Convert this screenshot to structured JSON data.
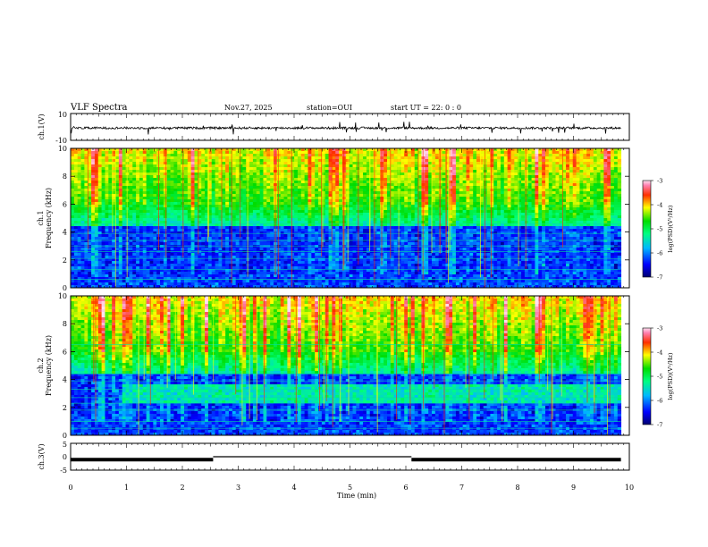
{
  "header": {
    "title": "VLF Spectra",
    "date": "Nov.27, 2025",
    "station": "station=OUI",
    "start": "start  UT =   22: 0  : 0"
  },
  "chart_data": {
    "type": "heatmap",
    "x": {
      "label": "Time  (min)",
      "range": [
        0,
        10
      ],
      "ticks": [
        "0",
        "1",
        "2",
        "3",
        "4",
        "5",
        "6",
        "7",
        "8",
        "9",
        "10"
      ]
    },
    "panels": [
      {
        "id": "waveform_ch1",
        "type": "line",
        "ylabel": "ch.1(V)",
        "ylim": [
          -10,
          10
        ],
        "yticks": [
          "10",
          "-10"
        ]
      },
      {
        "id": "spectrogram_ch1",
        "type": "heatmap",
        "ylabel_channel": "ch.1",
        "ylabel": "Frequency  (kHz)",
        "ylim": [
          0,
          10
        ],
        "yticks": [
          "0",
          "2",
          "4",
          "6",
          "8",
          "10"
        ],
        "colorbar": {
          "label": "log(PSD)(V²/Hz)",
          "range": [
            -7,
            -3
          ],
          "ticks": [
            "-3",
            "-4",
            "-5",
            "-6",
            "-7"
          ]
        }
      },
      {
        "id": "spectrogram_ch2",
        "type": "heatmap",
        "ylabel_channel": "ch.2",
        "ylabel": "Frequency  (kHz)",
        "ylim": [
          0,
          10
        ],
        "yticks": [
          "0",
          "2",
          "4",
          "6",
          "8",
          "10"
        ],
        "colorbar": {
          "label": "log(PSD)(V²/Hz)",
          "range": [
            -7,
            -3
          ],
          "ticks": [
            "-3",
            "-4",
            "-5",
            "-6",
            "-7"
          ]
        }
      },
      {
        "id": "waveform_ch3",
        "type": "line",
        "ylabel": "ch.3(V)",
        "ylim": [
          -5,
          5
        ],
        "yticks": [
          "5",
          "0",
          "-5"
        ],
        "segments": [
          {
            "x": [
              0,
              2.55
            ],
            "y": -1.1
          },
          {
            "x": [
              2.55,
              6.1
            ],
            "y": 0
          },
          {
            "x": [
              6.1,
              9.85
            ],
            "y": -1.1
          }
        ]
      }
    ],
    "data_end_min": 9.85
  }
}
